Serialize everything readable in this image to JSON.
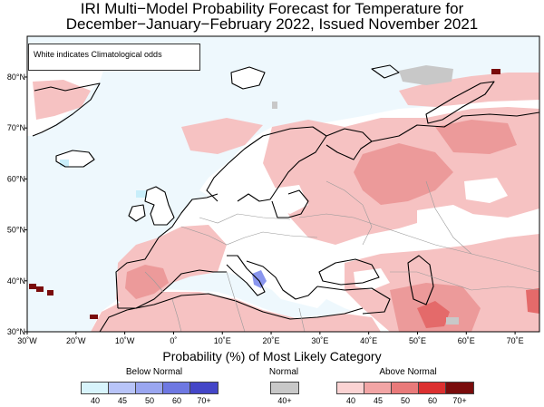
{
  "title_line1": "IRI Multi−Model Probability Forecast for Temperature for",
  "title_line2": "December−January−February 2022, Issued November 2021",
  "note": "White indicates Climatological odds",
  "map": {
    "lon_range": [
      -30,
      75
    ],
    "lat_range": [
      30,
      88
    ],
    "lat_ticks": [
      {
        "value": 80,
        "label": "80°N"
      },
      {
        "value": 70,
        "label": "70°N"
      },
      {
        "value": 60,
        "label": "60°N"
      },
      {
        "value": 50,
        "label": "50°N"
      },
      {
        "value": 40,
        "label": "40°N"
      },
      {
        "value": 30,
        "label": "30°N"
      }
    ],
    "lon_ticks": [
      {
        "value": -30,
        "label": "30˚W"
      },
      {
        "value": -20,
        "label": "20˚W"
      },
      {
        "value": -10,
        "label": "10˚W"
      },
      {
        "value": 0,
        "label": "0˚"
      },
      {
        "value": 10,
        "label": "10˚E"
      },
      {
        "value": 20,
        "label": "20˚E"
      },
      {
        "value": 30,
        "label": "30˚E"
      },
      {
        "value": 40,
        "label": "40˚E"
      },
      {
        "value": 50,
        "label": "50˚E"
      },
      {
        "value": 60,
        "label": "60˚E"
      },
      {
        "value": 70,
        "label": "70˚E"
      }
    ],
    "colors": {
      "ocean": "#eef8fd",
      "land_white": "#ffffff",
      "above_40": "#f8c8c8",
      "above_45": "#f0a0a0",
      "above_50": "#e86a6a",
      "above_60": "#d82020",
      "above_70": "#7a0c0c",
      "below_40": "#c8eefa",
      "below_50": "#8a9cf0",
      "normal": "#c8c8c8",
      "coast": "#000000",
      "border": "#999999"
    }
  },
  "legend": {
    "title": "Probability (%) of Most Likely Category",
    "below": {
      "label": "Below Normal",
      "ticks": [
        "40",
        "45",
        "50",
        "60",
        "70+"
      ],
      "colors": [
        "#d8f4fc",
        "#b8c4f8",
        "#9aa6f0",
        "#6e78e2",
        "#4446c8"
      ]
    },
    "normal": {
      "label": "Normal",
      "ticks": [
        "40+"
      ],
      "colors": [
        "#c8c8c8"
      ]
    },
    "above": {
      "label": "Above Normal",
      "ticks": [
        "40",
        "45",
        "50",
        "60",
        "70+"
      ],
      "colors": [
        "#fbd3d3",
        "#f2a5a5",
        "#e97a7a",
        "#dc3030",
        "#7a0c0c"
      ]
    }
  }
}
